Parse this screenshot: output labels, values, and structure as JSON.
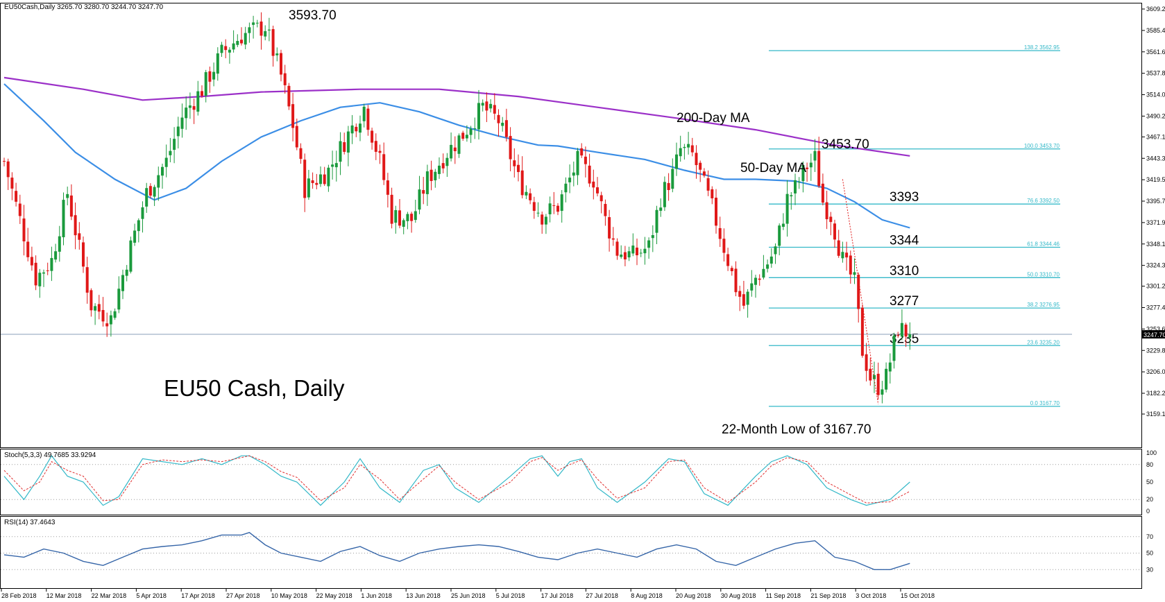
{
  "header": {
    "symbol_line": "EU50Cash,Daily  3265.70 3280.70 3244.70 3247.70"
  },
  "chart_data": {
    "type": "candlestick",
    "title": "EU50 Cash, Daily",
    "price_axis": {
      "ylim": [
        3159.1,
        3609.2
      ],
      "ticks": [
        "3609.20",
        "3585.40",
        "3561.60",
        "3537.80",
        "3514.00",
        "3490.20",
        "3467.10",
        "3443.30",
        "3419.50",
        "3395.70",
        "3371.90",
        "3348.10",
        "3324.30",
        "3301.20",
        "3277.40",
        "3253.60",
        "3229.80",
        "3206.00",
        "3182.20",
        "3159.10"
      ],
      "current_price": "3247.70"
    },
    "x_axis": {
      "labels": [
        "28 Feb 2018",
        "12 Mar 2018",
        "22 Mar 2018",
        "5 Apr 2018",
        "17 Apr 2018",
        "27 Apr 2018",
        "10 May 2018",
        "22 May 2018",
        "1 Jun 2018",
        "13 Jun 2018",
        "25 Jun 2018",
        "5 Jul 2018",
        "17 Jul 2018",
        "27 Jul 2018",
        "8 Aug 2018",
        "20 Aug 2018",
        "30 Aug 2018",
        "11 Sep 2018",
        "21 Sep 2018",
        "3 Oct 2018",
        "15 Oct 2018"
      ]
    },
    "close_path": [
      [
        0,
        3440
      ],
      [
        8,
        3310
      ],
      [
        12,
        3330
      ],
      [
        16,
        3405
      ],
      [
        22,
        3280
      ],
      [
        27,
        3265
      ],
      [
        31,
        3330
      ],
      [
        36,
        3405
      ],
      [
        41,
        3440
      ],
      [
        45,
        3490
      ],
      [
        50,
        3520
      ],
      [
        55,
        3560
      ],
      [
        60,
        3580
      ],
      [
        66,
        3590
      ],
      [
        70,
        3535
      ],
      [
        73,
        3480
      ],
      [
        76,
        3410
      ],
      [
        82,
        3430
      ],
      [
        87,
        3470
      ],
      [
        91,
        3500
      ],
      [
        95,
        3440
      ],
      [
        98,
        3380
      ],
      [
        103,
        3375
      ],
      [
        107,
        3420
      ],
      [
        112,
        3450
      ],
      [
        116,
        3470
      ],
      [
        121,
        3500
      ],
      [
        125,
        3485
      ],
      [
        130,
        3420
      ],
      [
        136,
        3380
      ],
      [
        140,
        3390
      ],
      [
        145,
        3440
      ],
      [
        149,
        3420
      ],
      [
        152,
        3375
      ],
      [
        155,
        3340
      ],
      [
        159,
        3335
      ],
      [
        163,
        3345
      ],
      [
        166,
        3400
      ],
      [
        169,
        3425
      ],
      [
        171,
        3453
      ],
      [
        174,
        3447
      ],
      [
        176,
        3425
      ],
      [
        179,
        3388
      ],
      [
        183,
        3330
      ],
      [
        185,
        3300
      ],
      [
        187,
        3280
      ],
      [
        190,
        3310
      ],
      [
        192,
        3320
      ],
      [
        195,
        3342
      ],
      [
        198,
        3398
      ],
      [
        200,
        3410
      ],
      [
        203,
        3435
      ],
      [
        205,
        3443
      ],
      [
        207,
        3395
      ],
      [
        209,
        3380
      ],
      [
        212,
        3330
      ],
      [
        215,
        3305
      ],
      [
        217,
        3230
      ],
      [
        219,
        3200
      ],
      [
        221,
        3190
      ],
      [
        223,
        3200
      ],
      [
        226,
        3255
      ],
      [
        229,
        3247.7
      ]
    ],
    "candle_count": 230,
    "moving_averages": [
      {
        "name": "200-Day MA",
        "color": "#9b30c8",
        "points": [
          [
            0,
            3533
          ],
          [
            20,
            3520
          ],
          [
            35,
            3508
          ],
          [
            50,
            3512
          ],
          [
            65,
            3517
          ],
          [
            90,
            3520
          ],
          [
            110,
            3520
          ],
          [
            130,
            3512
          ],
          [
            150,
            3500
          ],
          [
            170,
            3488
          ],
          [
            190,
            3475
          ],
          [
            210,
            3458
          ],
          [
            229,
            3446
          ]
        ]
      },
      {
        "name": "50-Day MA",
        "color": "#3b8ee6",
        "points": [
          [
            0,
            3526
          ],
          [
            10,
            3485
          ],
          [
            18,
            3450
          ],
          [
            28,
            3420
          ],
          [
            38,
            3397
          ],
          [
            46,
            3410
          ],
          [
            55,
            3440
          ],
          [
            65,
            3467
          ],
          [
            75,
            3485
          ],
          [
            85,
            3500
          ],
          [
            95,
            3505
          ],
          [
            105,
            3495
          ],
          [
            115,
            3480
          ],
          [
            125,
            3468
          ],
          [
            135,
            3458
          ],
          [
            140,
            3457
          ],
          [
            150,
            3450
          ],
          [
            162,
            3442
          ],
          [
            172,
            3430
          ],
          [
            182,
            3420
          ],
          [
            190,
            3420
          ],
          [
            200,
            3418
          ],
          [
            208,
            3410
          ],
          [
            215,
            3395
          ],
          [
            222,
            3375
          ],
          [
            229,
            3366
          ]
        ]
      }
    ],
    "fibonacci": {
      "color": "#33b8c8",
      "levels": [
        {
          "ratio": "138.2",
          "value": "3562.95",
          "label": ""
        },
        {
          "ratio": "100.0",
          "value": "3453.70",
          "label": ""
        },
        {
          "ratio": "76.6",
          "value": "3392.50",
          "label": "3393"
        },
        {
          "ratio": "61.8",
          "value": "3344.46",
          "label": "3344"
        },
        {
          "ratio": "50.0",
          "value": "3310.70",
          "label": "3310"
        },
        {
          "ratio": "38.2",
          "value": "3276.95",
          "label": "3277"
        },
        {
          "ratio": "23.6",
          "value": "3235.20",
          "label": "3235"
        },
        {
          "ratio": "0.0",
          "value": "3167.70",
          "label": ""
        }
      ]
    },
    "annotations": {
      "high": "3593.70",
      "sep_high": "3453.70",
      "ma200": "200-Day MA",
      "ma50": "50-Day MA",
      "low": "22-Month Low of 3167.70",
      "title": "EU50 Cash, Daily"
    },
    "stoch": {
      "label": "Stoch(5,3,3) 49.7685 33.9294",
      "ticks": [
        "100",
        "80",
        "50",
        "20",
        "0"
      ],
      "main_color": "#33b8c8",
      "signal_color": "#e03030",
      "main": [
        [
          0,
          60
        ],
        [
          5,
          20
        ],
        [
          9,
          60
        ],
        [
          12,
          95
        ],
        [
          16,
          60
        ],
        [
          20,
          50
        ],
        [
          25,
          10
        ],
        [
          29,
          25
        ],
        [
          35,
          90
        ],
        [
          40,
          85
        ],
        [
          45,
          80
        ],
        [
          50,
          90
        ],
        [
          55,
          80
        ],
        [
          60,
          95
        ],
        [
          62,
          95
        ],
        [
          66,
          80
        ],
        [
          70,
          60
        ],
        [
          74,
          50
        ],
        [
          80,
          10
        ],
        [
          86,
          50
        ],
        [
          90,
          90
        ],
        [
          95,
          40
        ],
        [
          100,
          15
        ],
        [
          106,
          70
        ],
        [
          110,
          80
        ],
        [
          114,
          40
        ],
        [
          120,
          15
        ],
        [
          128,
          60
        ],
        [
          133,
          90
        ],
        [
          136,
          95
        ],
        [
          140,
          60
        ],
        [
          143,
          85
        ],
        [
          146,
          90
        ],
        [
          150,
          40
        ],
        [
          155,
          15
        ],
        [
          162,
          50
        ],
        [
          168,
          90
        ],
        [
          172,
          85
        ],
        [
          177,
          30
        ],
        [
          183,
          10
        ],
        [
          190,
          60
        ],
        [
          194,
          85
        ],
        [
          198,
          95
        ],
        [
          203,
          80
        ],
        [
          208,
          40
        ],
        [
          214,
          20
        ],
        [
          218,
          10
        ],
        [
          224,
          20
        ],
        [
          229,
          50
        ]
      ],
      "signal": [
        [
          0,
          70
        ],
        [
          5,
          35
        ],
        [
          9,
          50
        ],
        [
          12,
          85
        ],
        [
          16,
          70
        ],
        [
          20,
          60
        ],
        [
          25,
          18
        ],
        [
          29,
          20
        ],
        [
          35,
          80
        ],
        [
          40,
          88
        ],
        [
          45,
          85
        ],
        [
          50,
          88
        ],
        [
          55,
          85
        ],
        [
          60,
          92
        ],
        [
          62,
          95
        ],
        [
          66,
          85
        ],
        [
          70,
          68
        ],
        [
          74,
          58
        ],
        [
          80,
          18
        ],
        [
          86,
          40
        ],
        [
          90,
          80
        ],
        [
          95,
          55
        ],
        [
          100,
          20
        ],
        [
          106,
          55
        ],
        [
          110,
          78
        ],
        [
          114,
          50
        ],
        [
          120,
          20
        ],
        [
          128,
          50
        ],
        [
          133,
          85
        ],
        [
          136,
          92
        ],
        [
          140,
          70
        ],
        [
          143,
          80
        ],
        [
          146,
          88
        ],
        [
          150,
          55
        ],
        [
          155,
          22
        ],
        [
          162,
          40
        ],
        [
          168,
          85
        ],
        [
          172,
          88
        ],
        [
          177,
          40
        ],
        [
          183,
          15
        ],
        [
          190,
          50
        ],
        [
          194,
          78
        ],
        [
          198,
          92
        ],
        [
          203,
          85
        ],
        [
          208,
          50
        ],
        [
          214,
          28
        ],
        [
          218,
          14
        ],
        [
          224,
          16
        ],
        [
          229,
          34
        ]
      ]
    },
    "rsi": {
      "label": "RSI(14) 37.4643",
      "ticks": [
        "70",
        "50",
        "30"
      ],
      "color": "#3565a8",
      "values": [
        [
          0,
          48
        ],
        [
          5,
          45
        ],
        [
          10,
          55
        ],
        [
          15,
          50
        ],
        [
          20,
          40
        ],
        [
          25,
          35
        ],
        [
          30,
          45
        ],
        [
          35,
          55
        ],
        [
          40,
          58
        ],
        [
          45,
          60
        ],
        [
          50,
          65
        ],
        [
          55,
          72
        ],
        [
          60,
          72
        ],
        [
          62,
          75
        ],
        [
          66,
          60
        ],
        [
          70,
          50
        ],
        [
          75,
          45
        ],
        [
          80,
          40
        ],
        [
          85,
          52
        ],
        [
          90,
          58
        ],
        [
          95,
          47
        ],
        [
          100,
          40
        ],
        [
          105,
          50
        ],
        [
          110,
          55
        ],
        [
          115,
          58
        ],
        [
          120,
          60
        ],
        [
          125,
          58
        ],
        [
          130,
          52
        ],
        [
          135,
          45
        ],
        [
          140,
          42
        ],
        [
          145,
          50
        ],
        [
          150,
          55
        ],
        [
          155,
          50
        ],
        [
          160,
          45
        ],
        [
          165,
          55
        ],
        [
          170,
          60
        ],
        [
          175,
          55
        ],
        [
          180,
          40
        ],
        [
          185,
          35
        ],
        [
          190,
          45
        ],
        [
          195,
          55
        ],
        [
          200,
          62
        ],
        [
          205,
          65
        ],
        [
          210,
          45
        ],
        [
          215,
          40
        ],
        [
          220,
          30
        ],
        [
          224,
          30
        ],
        [
          229,
          37.5
        ]
      ]
    }
  }
}
